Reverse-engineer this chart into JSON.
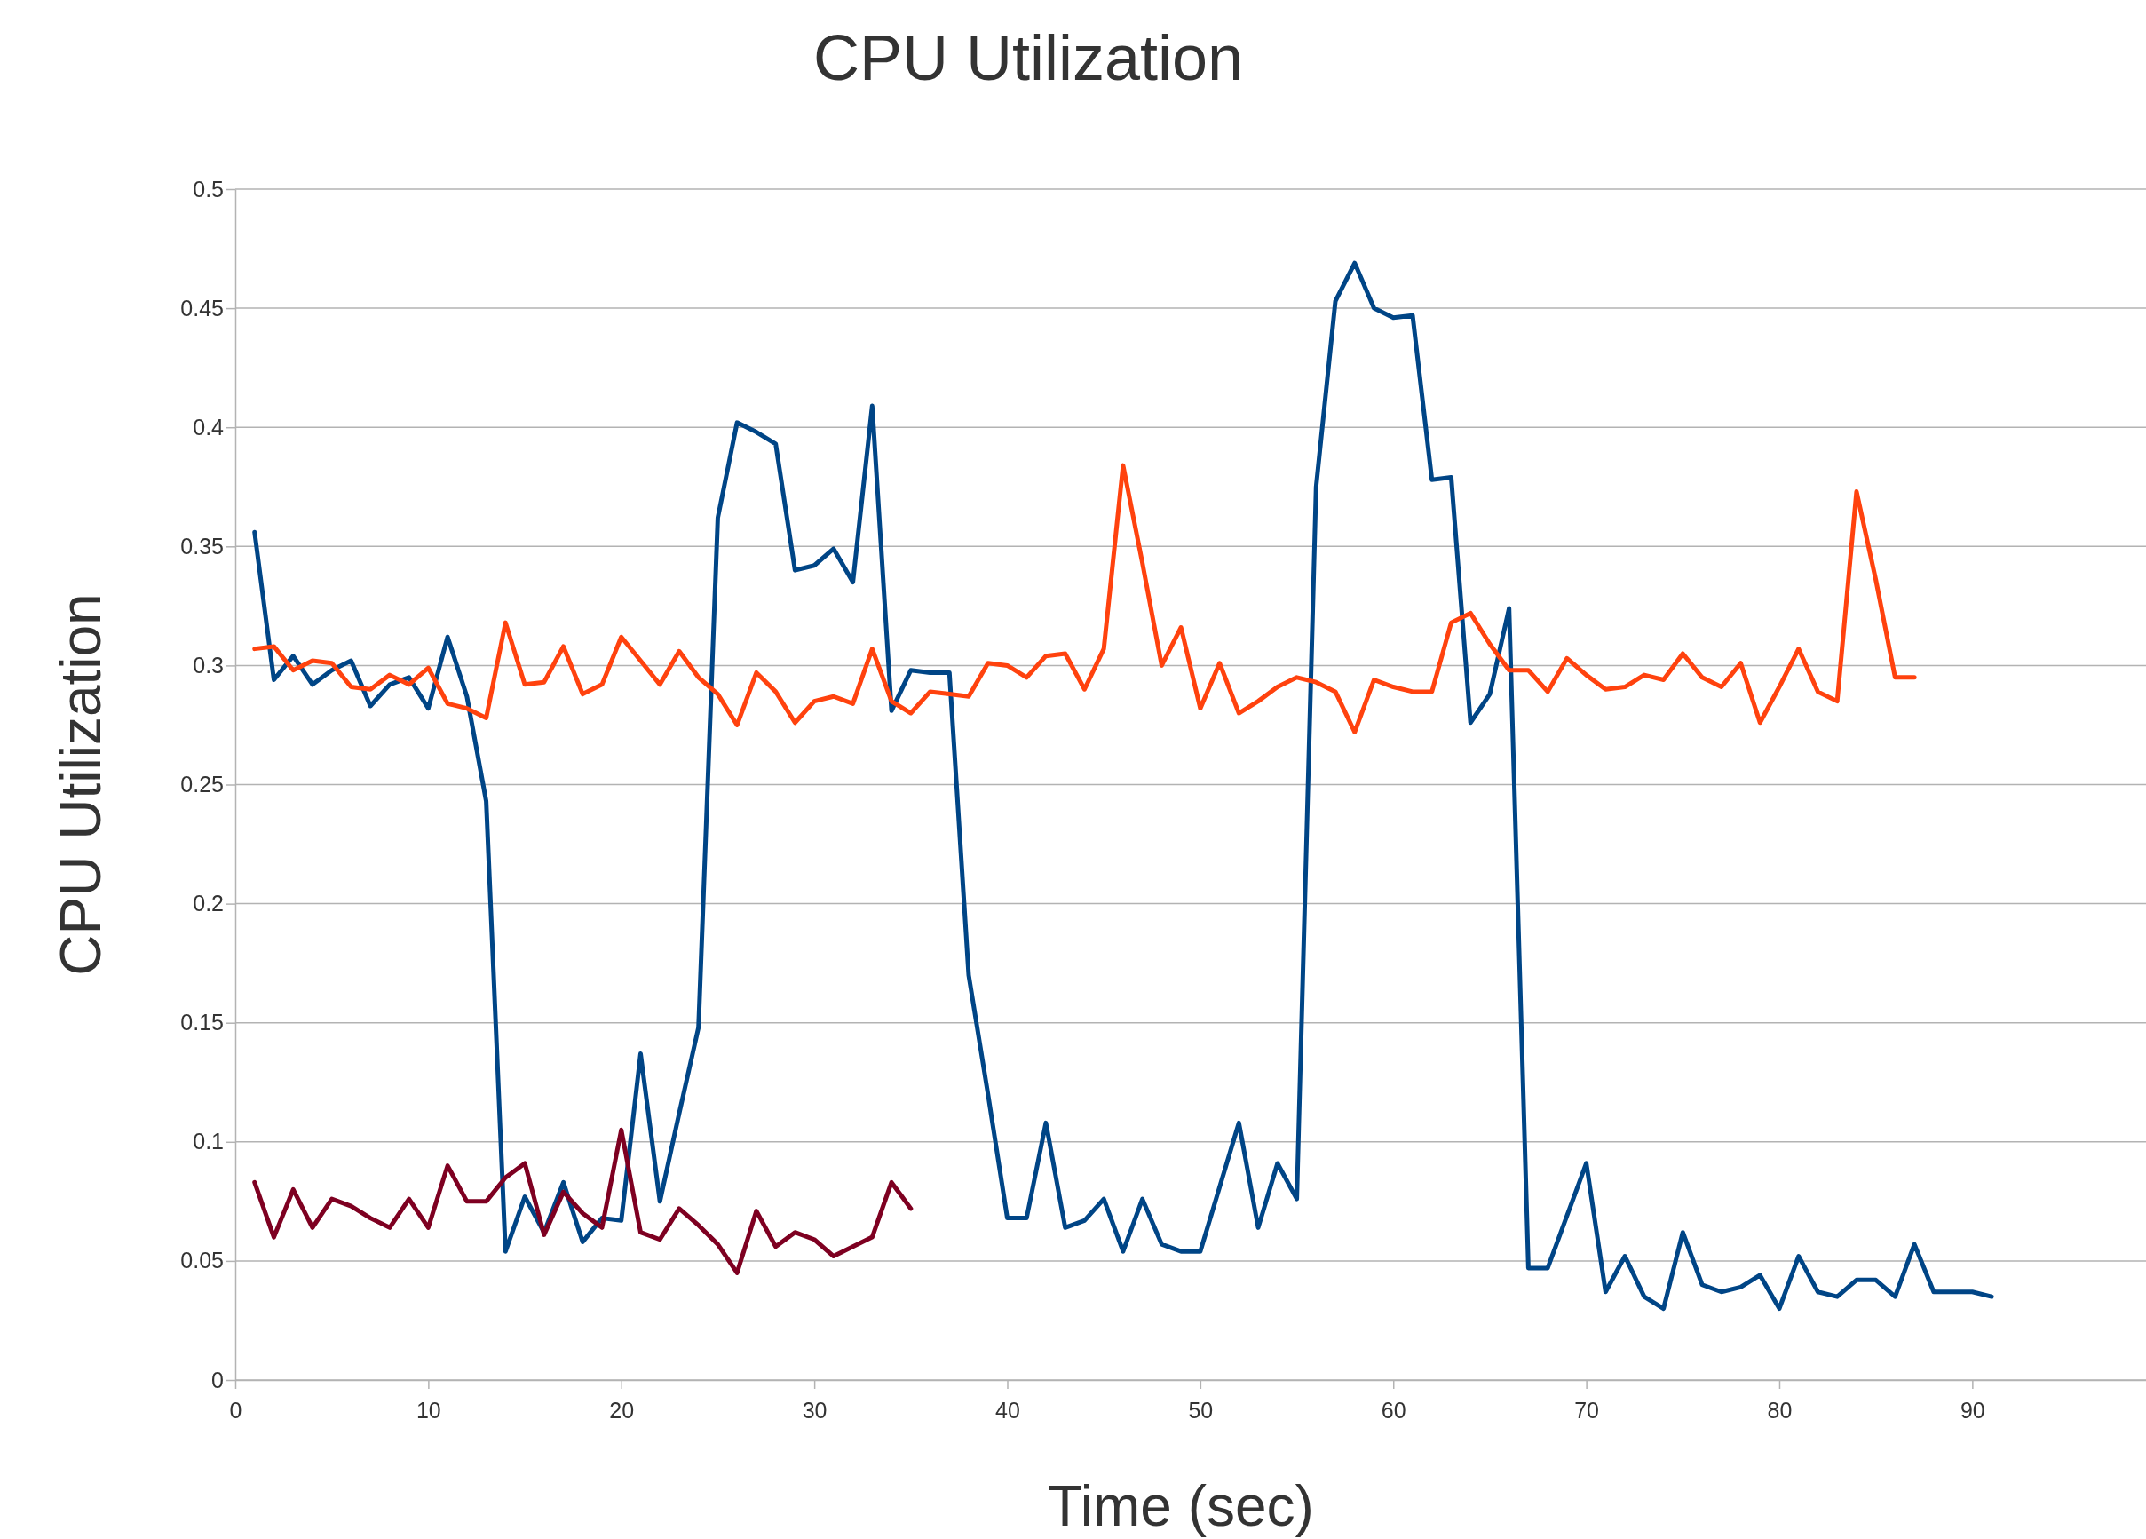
{
  "chart_data": {
    "type": "line",
    "title": "CPU Utilization",
    "xlabel": "Time (sec)",
    "ylabel": "CPU Utilization",
    "xlim": [
      0,
      99
    ],
    "xticks": [
      0,
      10,
      20,
      30,
      40,
      50,
      60,
      70,
      80,
      90
    ],
    "ylim": [
      0,
      0.5
    ],
    "yticks": [
      0,
      0.05,
      0.1,
      0.15,
      0.2,
      0.25,
      0.3,
      0.35,
      0.4,
      0.45,
      0.5
    ],
    "grid": "y",
    "marker": "none",
    "line_style": "solid",
    "series": [
      {
        "color": "#004586",
        "x": [
          1,
          2,
          3,
          4,
          5,
          6,
          7,
          8,
          9,
          10,
          11,
          12,
          13,
          14,
          15,
          16,
          17,
          18,
          19,
          20,
          21,
          22,
          23,
          24,
          25,
          26,
          27,
          28,
          29,
          30,
          31,
          32,
          33,
          34,
          35,
          36,
          37,
          38,
          39,
          40,
          41,
          42,
          43,
          44,
          45,
          46,
          47,
          48,
          49,
          50,
          51,
          52,
          53,
          54,
          55,
          56,
          57,
          58,
          59,
          60,
          61,
          62,
          63,
          64,
          65,
          66,
          67,
          68,
          69,
          70,
          71,
          72,
          73,
          74,
          75,
          76,
          77,
          78,
          79,
          80,
          81,
          82,
          83,
          84,
          85,
          86,
          87,
          88,
          89,
          90,
          91
        ],
        "values": [
          0.356,
          0.294,
          0.304,
          0.292,
          0.298,
          0.302,
          0.283,
          0.292,
          0.295,
          0.282,
          0.312,
          0.287,
          0.243,
          0.054,
          0.077,
          0.062,
          0.083,
          0.058,
          0.068,
          0.067,
          0.137,
          0.075,
          0.112,
          0.148,
          0.362,
          0.402,
          0.398,
          0.393,
          0.34,
          0.342,
          0.349,
          0.335,
          0.409,
          0.281,
          0.298,
          0.297,
          0.297,
          0.17,
          0.12,
          0.068,
          0.068,
          0.108,
          0.064,
          0.067,
          0.076,
          0.054,
          0.076,
          0.057,
          0.054,
          0.054,
          0.081,
          0.108,
          0.064,
          0.091,
          0.076,
          0.375,
          0.453,
          0.469,
          0.45,
          0.446,
          0.447,
          0.378,
          0.379,
          0.276,
          0.288,
          0.324,
          0.047,
          0.047,
          0.069,
          0.091,
          0.037,
          0.052,
          0.035,
          0.03,
          0.062,
          0.04,
          0.037,
          0.039,
          0.044,
          0.03,
          0.052,
          0.037,
          0.035,
          0.042,
          0.042,
          0.035,
          0.057,
          0.037,
          0.037,
          0.037,
          0.035
        ]
      },
      {
        "color": "#ff420e",
        "x": [
          1,
          2,
          3,
          4,
          5,
          6,
          7,
          8,
          9,
          10,
          11,
          12,
          13,
          14,
          15,
          16,
          17,
          18,
          19,
          20,
          21,
          22,
          23,
          24,
          25,
          26,
          27,
          28,
          29,
          30,
          31,
          32,
          33,
          34,
          35,
          36,
          37,
          38,
          39,
          40,
          41,
          42,
          43,
          44,
          45,
          46,
          47,
          48,
          49,
          50,
          51,
          52,
          53,
          54,
          55,
          56,
          57,
          58,
          59,
          60,
          61,
          62,
          63,
          64,
          65,
          66,
          67,
          68,
          69,
          70,
          71,
          72,
          73,
          74,
          75,
          76,
          77,
          78,
          79,
          80,
          81,
          82,
          83,
          84,
          85,
          86,
          87
        ],
        "values": [
          0.307,
          0.308,
          0.298,
          0.302,
          0.301,
          0.291,
          0.29,
          0.296,
          0.292,
          0.299,
          0.284,
          0.282,
          0.278,
          0.318,
          0.292,
          0.293,
          0.308,
          0.288,
          0.292,
          0.312,
          0.302,
          0.292,
          0.306,
          0.295,
          0.288,
          0.275,
          0.297,
          0.289,
          0.276,
          0.285,
          0.287,
          0.284,
          0.307,
          0.285,
          0.28,
          0.289,
          0.288,
          0.287,
          0.301,
          0.3,
          0.295,
          0.304,
          0.305,
          0.29,
          0.307,
          0.384,
          0.343,
          0.3,
          0.316,
          0.282,
          0.301,
          0.28,
          0.285,
          0.291,
          0.295,
          0.293,
          0.289,
          0.272,
          0.294,
          0.291,
          0.289,
          0.289,
          0.318,
          0.322,
          0.309,
          0.298,
          0.298,
          0.289,
          0.303,
          0.296,
          0.29,
          0.291,
          0.296,
          0.294,
          0.305,
          0.295,
          0.291,
          0.301,
          0.276,
          0.291,
          0.307,
          0.289,
          0.285,
          0.373,
          0.336,
          0.295,
          0.295
        ]
      },
      {
        "color": "#7e0021",
        "x": [
          1,
          2,
          3,
          4,
          5,
          6,
          7,
          8,
          9,
          10,
          11,
          12,
          13,
          14,
          15,
          16,
          17,
          18,
          19,
          20,
          21,
          22,
          23,
          24,
          25,
          26,
          27,
          28,
          29,
          30,
          31,
          32,
          33,
          34,
          35
        ],
        "values": [
          0.083,
          0.06,
          0.08,
          0.064,
          0.076,
          0.073,
          0.068,
          0.064,
          0.076,
          0.064,
          0.09,
          0.075,
          0.075,
          0.085,
          0.091,
          0.061,
          0.079,
          0.07,
          0.064,
          0.105,
          0.062,
          0.059,
          0.072,
          0.065,
          0.057,
          0.045,
          0.071,
          0.056,
          0.062,
          0.059,
          0.052,
          0.056,
          0.06,
          0.083,
          0.072
        ]
      }
    ]
  }
}
